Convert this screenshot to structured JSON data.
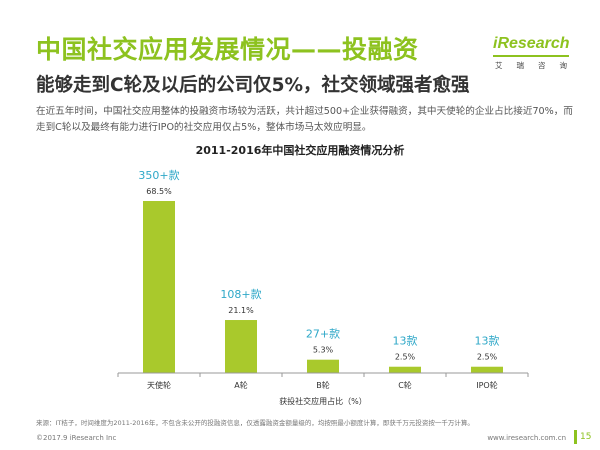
{
  "header": {
    "title": "中国社交应用发展情况——投融资",
    "subtitle": "能够走到C轮及以后的公司仅5%，社交领域强者愈强",
    "intro": "在近五年时间，中国社交应用整体的投融资市场较为活跃，共计超过500+企业获得融资，其中天使轮的企业占比接近70%，而走到C轮以及最终有能力进行IPO的社交应用仅占5%，整体市场马太效应明显。"
  },
  "logo": {
    "text": "iResearch",
    "chinese": [
      "艾",
      "瑞",
      "咨",
      "询"
    ]
  },
  "chart_data": {
    "type": "bar",
    "title": "2011-2016年中国社交应用融资情况分析",
    "xlabel": "获投社交应用占比（%）",
    "ylabel": "",
    "categories": [
      "天使轮",
      "A轮",
      "B轮",
      "C轮",
      "IPO轮"
    ],
    "values": [
      68.5,
      21.1,
      5.3,
      2.5,
      2.5
    ],
    "value_labels": [
      "68.5%",
      "21.1%",
      "5.3%",
      "2.5%",
      "2.5%"
    ],
    "count_labels": [
      "350+款",
      "108+款",
      "27+款",
      "13款",
      "13款"
    ],
    "ylim": [
      0,
      68.5
    ],
    "grid": false,
    "legend": "none",
    "colors": {
      "bar": "#a9c92c",
      "count_label": "#2fa8c8",
      "value_label": "#333333",
      "axis": "#999999"
    }
  },
  "footer": {
    "note": "来源：IT桔子，时间维度为2011-2016年，不包含未公开的投融资信息，仅透露融资金额量级的，均按照最小额度计算，即获千万元投资按一千万计算。",
    "copyright": "©2017.9 iResearch Inc",
    "website": "www.iresearch.com.cn",
    "page": "15"
  },
  "theme": {
    "accent": "#8dc21f"
  }
}
